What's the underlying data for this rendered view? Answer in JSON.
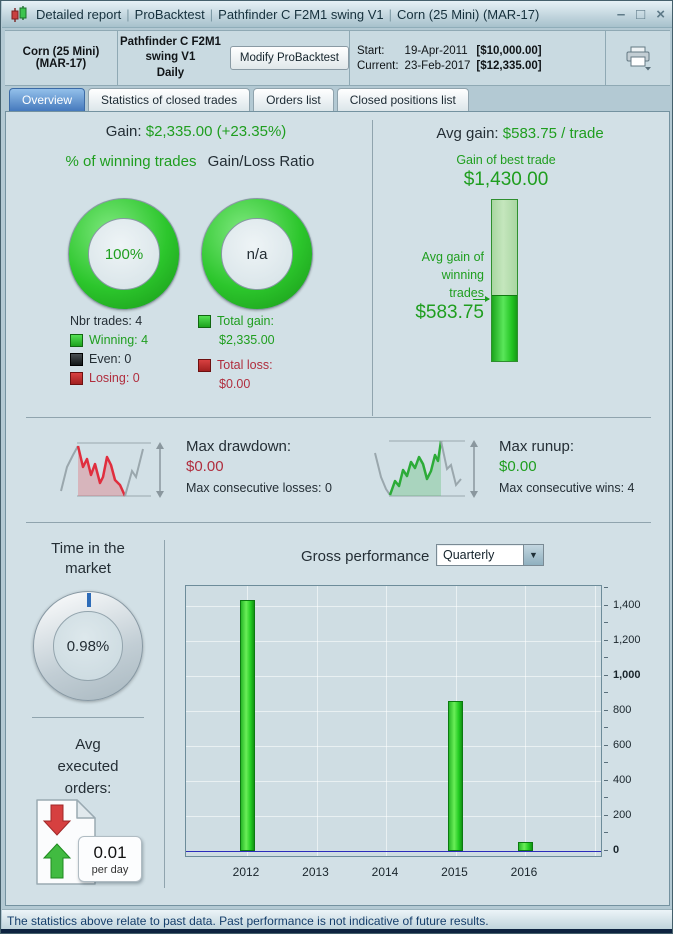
{
  "window": {
    "title_parts": [
      "Detailed report",
      "ProBacktest",
      "Pathfinder C F2M1 swing V1",
      "Corn (25 Mini) (MAR-17)"
    ],
    "separator": "|",
    "controls": {
      "minimize": "–",
      "maximize": "□",
      "close": "×"
    }
  },
  "header": {
    "instrument": "Corn (25 Mini) (MAR-17)",
    "strategy": "Pathfinder C F2M1 swing V1",
    "timeframe": "Daily",
    "modify_button": "Modify ProBacktest",
    "start_label": "Start:",
    "start_date": "19-Apr-2011",
    "start_value": "[$10,000.00]",
    "current_label": "Current:",
    "current_date": "23-Feb-2017",
    "current_value": "[$12,335.00]"
  },
  "tabs": [
    {
      "label": "Overview"
    },
    {
      "label": "Statistics of closed trades"
    },
    {
      "label": "Orders list"
    },
    {
      "label": "Closed positions list"
    }
  ],
  "overview": {
    "gain_label": "Gain:",
    "gain_value": "$2,335.00 (+23.35%)",
    "winning_title": "% of winning trades",
    "winning_pct": "100%",
    "ratio_title": "Gain/Loss Ratio",
    "ratio_value": "n/a",
    "nbr_trades": "Nbr trades: 4",
    "winning": "Winning: 4",
    "even": "Even: 0",
    "losing": "Losing: 0",
    "total_gain_label": "Total gain:",
    "total_gain_value": "$2,335.00",
    "total_loss_label": "Total loss:",
    "total_loss_value": "$0.00",
    "avg_gain_label": "Avg gain:",
    "avg_gain_value": "$583.75 / trade",
    "best_trade_label": "Gain of best trade",
    "best_trade_value": "$1,430.00",
    "avg_win_label_1": "Avg gain of",
    "avg_win_label_2": "winning",
    "avg_win_label_3": "trades",
    "avg_win_value": "$583.75",
    "max_drawdown_label": "Max drawdown:",
    "max_drawdown_value": "$0.00",
    "max_consecutive_losses": "Max consecutive losses: 0",
    "max_runup_label": "Max runup:",
    "max_runup_value": "$0.00",
    "max_consecutive_wins": "Max consecutive wins: 4",
    "time_in_market_title_1": "Time in the",
    "time_in_market_title_2": "market",
    "time_in_market_value": "0.98%",
    "avg_orders_title_1": "Avg",
    "avg_orders_title_2": "executed",
    "avg_orders_title_3": "orders:",
    "avg_orders_value": "0.01",
    "avg_orders_unit": "per day"
  },
  "performance": {
    "title": "Gross performance",
    "period_selected": "Quarterly",
    "dropdown_arrow": "▼"
  },
  "chart_data": {
    "type": "bar",
    "title": "Gross performance",
    "period": "Quarterly",
    "x_ticks": [
      "2012",
      "2013",
      "2014",
      "2015",
      "2016"
    ],
    "bars": [
      {
        "year": 2012,
        "value": 1430
      },
      {
        "year": 2015,
        "value": 855
      },
      {
        "year": 2016,
        "value": 50
      }
    ],
    "ylim": [
      0,
      1510
    ],
    "yticks": [
      0,
      200,
      400,
      600,
      800,
      1000,
      1200,
      1400
    ],
    "bold_yticks": [
      0,
      1000
    ],
    "minor_tick_step": 100,
    "bar_color": "#22cc22",
    "zero_line_color": "#2d2dbb",
    "grid": true
  },
  "footer": {
    "disclaimer": "The statistics above relate to past data. Past performance is not indicative of future results."
  },
  "colors": {
    "gain_green": "#1f9e1f",
    "loss_red": "#b02e3e",
    "active_tab_blue": "#4579bd",
    "panel_bg": "#d2e0e6"
  }
}
